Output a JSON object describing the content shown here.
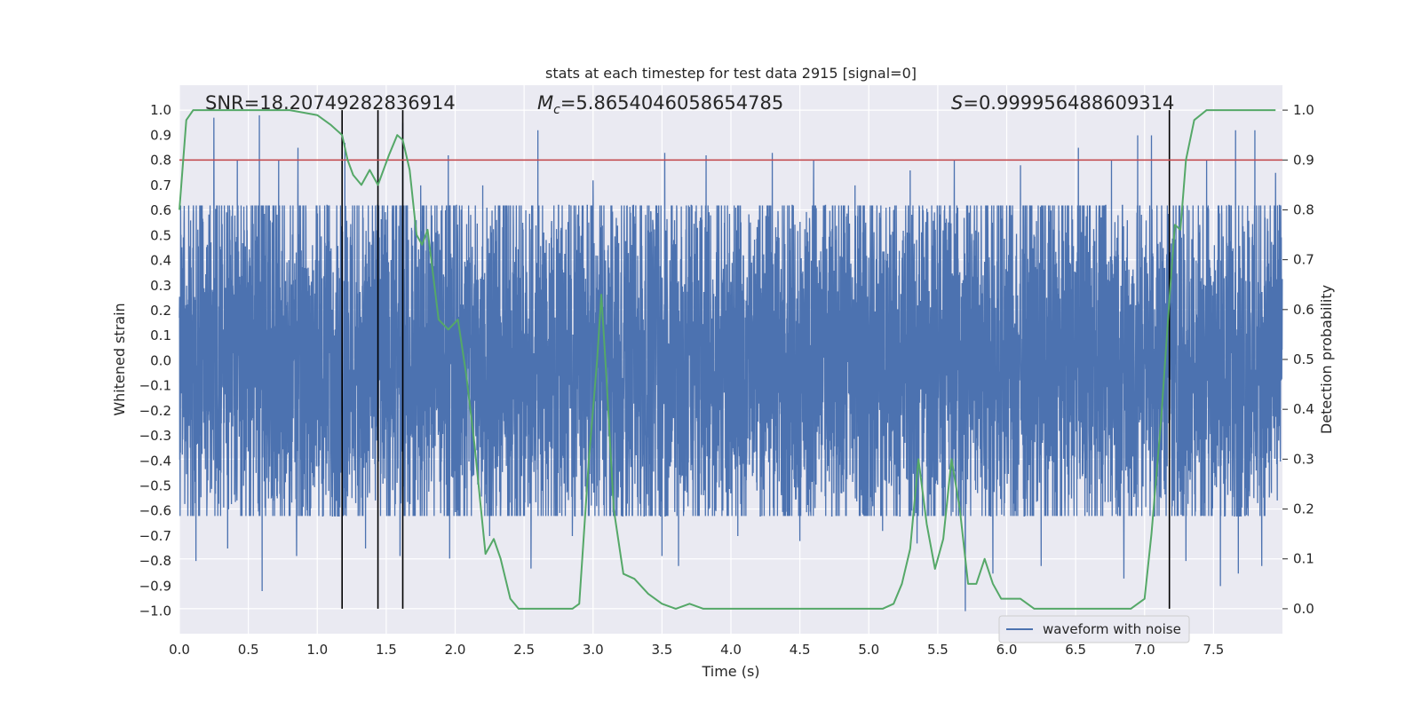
{
  "chart_data": {
    "type": "line",
    "title": "stats at each timestep for test data 2915 [signal=0]",
    "xlabel": "Time (s)",
    "ylabel": "Whitened strain",
    "y2label": "Detection probability",
    "xlim": [
      0.0,
      8.0
    ],
    "ylim": [
      -1.09,
      1.1
    ],
    "y2lim": [
      -0.05,
      1.05
    ],
    "xticks": [
      0.0,
      0.5,
      1.0,
      1.5,
      2.0,
      2.5,
      3.0,
      3.5,
      4.0,
      4.5,
      5.0,
      5.5,
      6.0,
      6.5,
      7.0,
      7.5
    ],
    "yticks": [
      1.0,
      0.9,
      0.8,
      0.7,
      0.6,
      0.5,
      0.4,
      0.3,
      0.2,
      0.1,
      0.0,
      -0.1,
      -0.2,
      -0.3,
      -0.4,
      -0.5,
      -0.6,
      -0.7,
      -0.8,
      -0.9,
      -1.0
    ],
    "y2ticks": [
      1.0,
      0.9,
      0.8,
      0.7,
      0.6,
      0.5,
      0.4,
      0.3,
      0.2,
      0.1,
      0.0
    ],
    "annotations": {
      "snr": "SNR=18.20749282836914",
      "mc": "=5.8654046058654785",
      "mc_symbol": "M",
      "mc_subscript": "c",
      "s": "=0.999956488609314",
      "s_symbol": "S"
    },
    "legend": {
      "label": "waveform with noise",
      "position": "lower-right"
    },
    "threshold": {
      "value": 0.9,
      "axis": "right",
      "color": "#c44e52"
    },
    "vlines": [
      1.18,
      1.44,
      1.62,
      7.18
    ],
    "waveform": {
      "name": "waveform with noise",
      "color": "#4c72b0",
      "duration": 8.0,
      "sample_rate": 800,
      "base_amplitude": 0.4,
      "peaks_up": [
        [
          0.12,
          0.9
        ],
        [
          0.25,
          0.97
        ],
        [
          0.42,
          0.8
        ],
        [
          0.58,
          0.98
        ],
        [
          0.72,
          0.8
        ],
        [
          0.86,
          0.85
        ],
        [
          1.2,
          0.87
        ],
        [
          1.35,
          0.92
        ],
        [
          1.62,
          0.95
        ],
        [
          1.75,
          0.7
        ],
        [
          1.95,
          0.82
        ],
        [
          2.2,
          0.7
        ],
        [
          2.6,
          0.92
        ],
        [
          3.0,
          0.72
        ],
        [
          3.52,
          0.83
        ],
        [
          3.82,
          0.82
        ],
        [
          4.3,
          0.83
        ],
        [
          4.6,
          0.8
        ],
        [
          4.9,
          0.7
        ],
        [
          5.3,
          0.76
        ],
        [
          5.62,
          0.8
        ],
        [
          6.1,
          0.78
        ],
        [
          6.52,
          0.85
        ],
        [
          6.76,
          0.8
        ],
        [
          6.95,
          0.9
        ],
        [
          7.05,
          0.9
        ],
        [
          7.45,
          0.8
        ],
        [
          7.66,
          0.92
        ],
        [
          7.8,
          0.92
        ],
        [
          7.95,
          0.75
        ]
      ],
      "peaks_down": [
        [
          0.12,
          -0.8
        ],
        [
          0.35,
          -0.75
        ],
        [
          0.6,
          -0.92
        ],
        [
          0.85,
          -0.78
        ],
        [
          1.35,
          -0.75
        ],
        [
          1.6,
          -0.78
        ],
        [
          1.96,
          -0.79
        ],
        [
          2.25,
          -0.7
        ],
        [
          2.55,
          -0.83
        ],
        [
          2.85,
          -0.7
        ],
        [
          3.5,
          -0.78
        ],
        [
          3.62,
          -0.82
        ],
        [
          4.05,
          -0.7
        ],
        [
          4.5,
          -0.72
        ],
        [
          5.1,
          -0.68
        ],
        [
          5.35,
          -0.73
        ],
        [
          5.7,
          -1.0
        ],
        [
          5.9,
          -0.85
        ],
        [
          6.25,
          -0.82
        ],
        [
          6.85,
          -0.87
        ],
        [
          7.3,
          -0.8
        ],
        [
          7.55,
          -0.9
        ],
        [
          7.68,
          -0.85
        ],
        [
          7.85,
          -0.82
        ]
      ]
    },
    "probability": {
      "name": "detection probability",
      "color": "#55a868",
      "x": [
        0.0,
        0.05,
        0.1,
        0.2,
        0.5,
        0.8,
        1.0,
        1.1,
        1.18,
        1.22,
        1.26,
        1.32,
        1.38,
        1.44,
        1.52,
        1.58,
        1.62,
        1.67,
        1.72,
        1.76,
        1.8,
        1.88,
        1.95,
        2.02,
        2.08,
        2.14,
        2.22,
        2.28,
        2.33,
        2.4,
        2.46,
        2.55,
        2.65,
        2.75,
        2.85,
        2.9,
        2.97,
        3.03,
        3.06,
        3.1,
        3.15,
        3.22,
        3.3,
        3.4,
        3.5,
        3.6,
        3.7,
        3.8,
        3.9,
        4.0,
        4.2,
        4.5,
        4.8,
        5.0,
        5.1,
        5.18,
        5.24,
        5.3,
        5.36,
        5.42,
        5.48,
        5.54,
        5.6,
        5.66,
        5.72,
        5.78,
        5.84,
        5.9,
        5.96,
        6.02,
        6.1,
        6.2,
        6.35,
        6.5,
        6.7,
        6.9,
        7.0,
        7.05,
        7.12,
        7.18,
        7.22,
        7.26,
        7.3,
        7.36,
        7.45,
        7.55,
        7.7,
        7.9,
        7.95
      ],
      "y": [
        0.8,
        0.98,
        1.0,
        1.0,
        1.0,
        1.0,
        0.99,
        0.97,
        0.95,
        0.9,
        0.87,
        0.85,
        0.88,
        0.85,
        0.91,
        0.95,
        0.94,
        0.88,
        0.75,
        0.73,
        0.76,
        0.58,
        0.56,
        0.58,
        0.47,
        0.33,
        0.11,
        0.14,
        0.1,
        0.02,
        0.0,
        0.0,
        0.0,
        0.0,
        0.0,
        0.01,
        0.3,
        0.5,
        0.63,
        0.45,
        0.2,
        0.07,
        0.06,
        0.03,
        0.01,
        0.0,
        0.01,
        0.0,
        0.0,
        0.0,
        0.0,
        0.0,
        0.0,
        0.0,
        0.0,
        0.01,
        0.05,
        0.12,
        0.3,
        0.17,
        0.08,
        0.14,
        0.3,
        0.2,
        0.05,
        0.05,
        0.1,
        0.05,
        0.02,
        0.02,
        0.02,
        0.0,
        0.0,
        0.0,
        0.0,
        0.0,
        0.02,
        0.15,
        0.38,
        0.62,
        0.77,
        0.76,
        0.9,
        0.98,
        1.0,
        1.0,
        1.0,
        1.0,
        1.0
      ]
    }
  }
}
